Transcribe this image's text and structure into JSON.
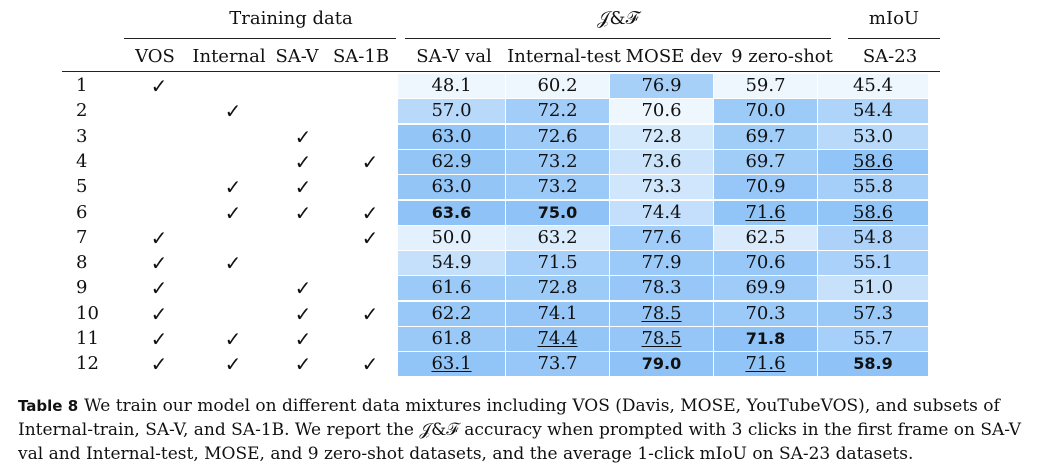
{
  "table": {
    "group_headers": {
      "training_data": "Training data",
      "jf": "𝒥&ℱ",
      "miou": "mIoU"
    },
    "columns": {
      "training": [
        "VOS",
        "Internal",
        "SA-V",
        "SA-1B"
      ],
      "jf": [
        "SA-V val",
        "Internal-test",
        "MOSE dev",
        "9 zero-shot"
      ],
      "miou": [
        "SA-23"
      ]
    },
    "check_glyph": "✓",
    "rows": [
      {
        "id": "1",
        "train": [
          true,
          false,
          false,
          false
        ],
        "vals": [
          "48.1",
          "60.2",
          "76.9",
          "59.7",
          "45.4"
        ],
        "style": [
          "",
          "",
          "",
          "",
          ""
        ]
      },
      {
        "id": "2",
        "train": [
          false,
          true,
          false,
          false
        ],
        "vals": [
          "57.0",
          "72.2",
          "70.6",
          "70.0",
          "54.4"
        ],
        "style": [
          "",
          "",
          "",
          "",
          ""
        ]
      },
      {
        "id": "3",
        "train": [
          false,
          false,
          true,
          false
        ],
        "vals": [
          "63.0",
          "72.6",
          "72.8",
          "69.7",
          "53.0"
        ],
        "style": [
          "",
          "",
          "",
          "",
          ""
        ]
      },
      {
        "id": "4",
        "train": [
          false,
          false,
          true,
          true
        ],
        "vals": [
          "62.9",
          "73.2",
          "73.6",
          "69.7",
          "58.6"
        ],
        "style": [
          "",
          "",
          "",
          "",
          "ul"
        ]
      },
      {
        "id": "5",
        "train": [
          false,
          true,
          true,
          false
        ],
        "vals": [
          "63.0",
          "73.2",
          "73.3",
          "70.9",
          "55.8"
        ],
        "style": [
          "",
          "",
          "",
          "",
          ""
        ]
      },
      {
        "id": "6",
        "train": [
          false,
          true,
          true,
          true
        ],
        "vals": [
          "63.6",
          "75.0",
          "74.4",
          "71.6",
          "58.6"
        ],
        "style": [
          "bold",
          "bold",
          "",
          "ul",
          "ul"
        ]
      },
      {
        "id": "7",
        "train": [
          true,
          false,
          false,
          true
        ],
        "vals": [
          "50.0",
          "63.2",
          "77.6",
          "62.5",
          "54.8"
        ],
        "style": [
          "",
          "",
          "",
          "",
          ""
        ]
      },
      {
        "id": "8",
        "train": [
          true,
          true,
          false,
          false
        ],
        "vals": [
          "54.9",
          "71.5",
          "77.9",
          "70.6",
          "55.1"
        ],
        "style": [
          "",
          "",
          "",
          "",
          ""
        ]
      },
      {
        "id": "9",
        "train": [
          true,
          false,
          true,
          false
        ],
        "vals": [
          "61.6",
          "72.8",
          "78.3",
          "69.9",
          "51.0"
        ],
        "style": [
          "",
          "",
          "",
          "",
          ""
        ]
      },
      {
        "id": "10",
        "train": [
          true,
          false,
          true,
          true
        ],
        "vals": [
          "62.2",
          "74.1",
          "78.5",
          "70.3",
          "57.3"
        ],
        "style": [
          "",
          "",
          "ul",
          "",
          ""
        ]
      },
      {
        "id": "11",
        "train": [
          true,
          true,
          true,
          false
        ],
        "vals": [
          "61.8",
          "74.4",
          "78.5",
          "71.8",
          "55.7"
        ],
        "style": [
          "",
          "ul",
          "ul",
          "bold",
          ""
        ]
      },
      {
        "id": "12",
        "train": [
          true,
          true,
          true,
          true
        ],
        "vals": [
          "63.1",
          "73.7",
          "79.0",
          "71.6",
          "58.9"
        ],
        "style": [
          "ul",
          "",
          "bold",
          "ul",
          "bold"
        ]
      }
    ],
    "heat_colors": {
      "low": "#ffffff",
      "high": "#8fc3f7"
    }
  },
  "caption": {
    "label": "Table 8",
    "text": "We train our model on different data mixtures including VOS (Davis, MOSE, YouTubeVOS), and subsets of Internal-train, SA-V, and SA-1B. We report the 𝒥&ℱ accuracy when prompted with 3 clicks in the first frame on SA-V val and Internal-test, MOSE, and 9 zero-shot datasets, and the average 1-click mIoU on SA-23 datasets."
  }
}
